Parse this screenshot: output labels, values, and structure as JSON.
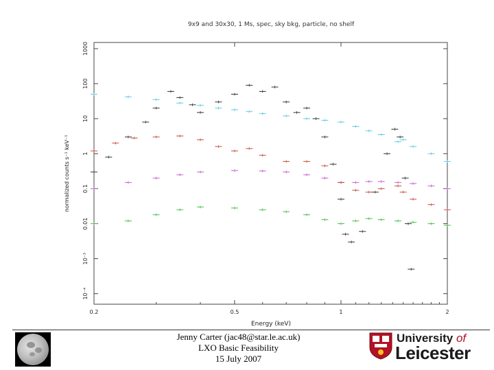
{
  "chart_data": {
    "type": "scatter",
    "title": "9x9 and 30x30, 1 Ms, spec, sky bkg, particle, no shelf",
    "xlabel": "Energy (keV)",
    "ylabel": "normalized counts s⁻¹ keV⁻¹",
    "xscale": "log",
    "yscale": "log",
    "xlim": [
      0.2,
      2.0
    ],
    "ylim": [
      5e-05,
      1500
    ],
    "x_ticks": [
      {
        "value": 0.2,
        "label": "0.2"
      },
      {
        "value": 0.5,
        "label": "0.5"
      },
      {
        "value": 1,
        "label": "1"
      },
      {
        "value": 2,
        "label": "2"
      }
    ],
    "y_ticks": [
      {
        "value": 1000,
        "label": "1000"
      },
      {
        "value": 100,
        "label": "100"
      },
      {
        "value": 10,
        "label": "10"
      },
      {
        "value": 1,
        "label": "1"
      },
      {
        "value": 0.1,
        "label": "0.1"
      },
      {
        "value": 0.01,
        "label": "0.01"
      },
      {
        "value": 0.001,
        "label": "10⁻³"
      },
      {
        "value": 0.0001,
        "label": "10⁻⁴"
      }
    ],
    "grid": false,
    "legend": "none",
    "series": [
      {
        "color": "#5ec8e8",
        "points": [
          [
            0.2,
            50
          ],
          [
            0.25,
            42
          ],
          [
            0.3,
            35
          ],
          [
            0.35,
            28
          ],
          [
            0.4,
            24
          ],
          [
            0.45,
            20
          ],
          [
            0.5,
            18
          ],
          [
            0.55,
            16
          ],
          [
            0.6,
            14
          ],
          [
            0.7,
            12
          ],
          [
            0.8,
            10
          ],
          [
            0.9,
            9
          ],
          [
            1.0,
            8
          ],
          [
            1.1,
            6
          ],
          [
            1.2,
            4.5
          ],
          [
            1.3,
            3.5
          ],
          [
            1.45,
            2.2
          ],
          [
            1.5,
            2.5
          ],
          [
            1.6,
            1.6
          ],
          [
            1.8,
            1.0
          ],
          [
            2.0,
            0.6
          ]
        ]
      },
      {
        "color": "#c85ad0",
        "points": [
          [
            0.2,
            0.1
          ],
          [
            0.25,
            0.15
          ],
          [
            0.3,
            0.2
          ],
          [
            0.35,
            0.25
          ],
          [
            0.4,
            0.3
          ],
          [
            0.5,
            0.33
          ],
          [
            0.6,
            0.32
          ],
          [
            0.7,
            0.3
          ],
          [
            0.8,
            0.25
          ],
          [
            0.9,
            0.2
          ],
          [
            1.0,
            0.15
          ],
          [
            1.1,
            0.15
          ],
          [
            1.2,
            0.16
          ],
          [
            1.3,
            0.16
          ],
          [
            1.45,
            0.15
          ],
          [
            1.6,
            0.14
          ],
          [
            1.8,
            0.12
          ],
          [
            2.0,
            0.1
          ]
        ]
      },
      {
        "color": "#44c044",
        "points": [
          [
            0.2,
            0.01
          ],
          [
            0.25,
            0.012
          ],
          [
            0.3,
            0.018
          ],
          [
            0.35,
            0.025
          ],
          [
            0.4,
            0.03
          ],
          [
            0.5,
            0.028
          ],
          [
            0.6,
            0.025
          ],
          [
            0.7,
            0.022
          ],
          [
            0.8,
            0.018
          ],
          [
            0.9,
            0.013
          ],
          [
            1.0,
            0.01
          ],
          [
            1.1,
            0.012
          ],
          [
            1.2,
            0.014
          ],
          [
            1.3,
            0.013
          ],
          [
            1.45,
            0.012
          ],
          [
            1.6,
            0.011
          ],
          [
            1.8,
            0.01
          ],
          [
            2.0,
            0.009
          ]
        ]
      },
      {
        "color": "#c84a3a",
        "points": [
          [
            0.2,
            1.2
          ],
          [
            0.23,
            2.0
          ],
          [
            0.26,
            2.8
          ],
          [
            0.3,
            3.0
          ],
          [
            0.35,
            3.2
          ],
          [
            0.4,
            2.5
          ],
          [
            0.45,
            1.6
          ],
          [
            0.5,
            1.2
          ],
          [
            0.55,
            1.4
          ],
          [
            0.6,
            0.9
          ],
          [
            0.7,
            0.6
          ],
          [
            0.8,
            0.6
          ],
          [
            0.9,
            0.45
          ],
          [
            1.0,
            0.15
          ],
          [
            1.1,
            0.09
          ],
          [
            1.2,
            0.08
          ],
          [
            1.3,
            0.1
          ],
          [
            1.45,
            0.12
          ],
          [
            1.5,
            0.08
          ],
          [
            1.6,
            0.05
          ],
          [
            1.8,
            0.035
          ],
          [
            2.0,
            0.025
          ]
        ]
      },
      {
        "color": "#333333",
        "points": [
          [
            0.2,
            0.3
          ],
          [
            0.22,
            0.8
          ],
          [
            0.25,
            3.0
          ],
          [
            0.28,
            8.0
          ],
          [
            0.3,
            20
          ],
          [
            0.33,
            60
          ],
          [
            0.35,
            40
          ],
          [
            0.38,
            25
          ],
          [
            0.4,
            15
          ],
          [
            0.45,
            30
          ],
          [
            0.5,
            50
          ],
          [
            0.55,
            90
          ],
          [
            0.6,
            60
          ],
          [
            0.65,
            80
          ],
          [
            0.7,
            30
          ],
          [
            0.75,
            15
          ],
          [
            0.8,
            20
          ],
          [
            0.85,
            10
          ],
          [
            0.9,
            3.0
          ],
          [
            0.95,
            0.5
          ],
          [
            1.0,
            0.05
          ],
          [
            1.03,
            0.005
          ],
          [
            1.07,
            0.003
          ],
          [
            1.15,
            0.006
          ],
          [
            1.25,
            0.08
          ],
          [
            1.35,
            1.0
          ],
          [
            1.42,
            5.0
          ],
          [
            1.47,
            3.0
          ],
          [
            1.52,
            0.2
          ],
          [
            1.55,
            0.01
          ],
          [
            1.58,
            0.0005
          ]
        ]
      }
    ]
  },
  "credits": {
    "author": "Jenny Carter (jac48@star.le.ac.uk)",
    "project": "LXO Basic Feasibility",
    "date": "15 July 2007"
  },
  "logo": {
    "line1_main": "University",
    "line1_of": "of",
    "line2": "Leicester",
    "shield_color": "#b11226"
  }
}
